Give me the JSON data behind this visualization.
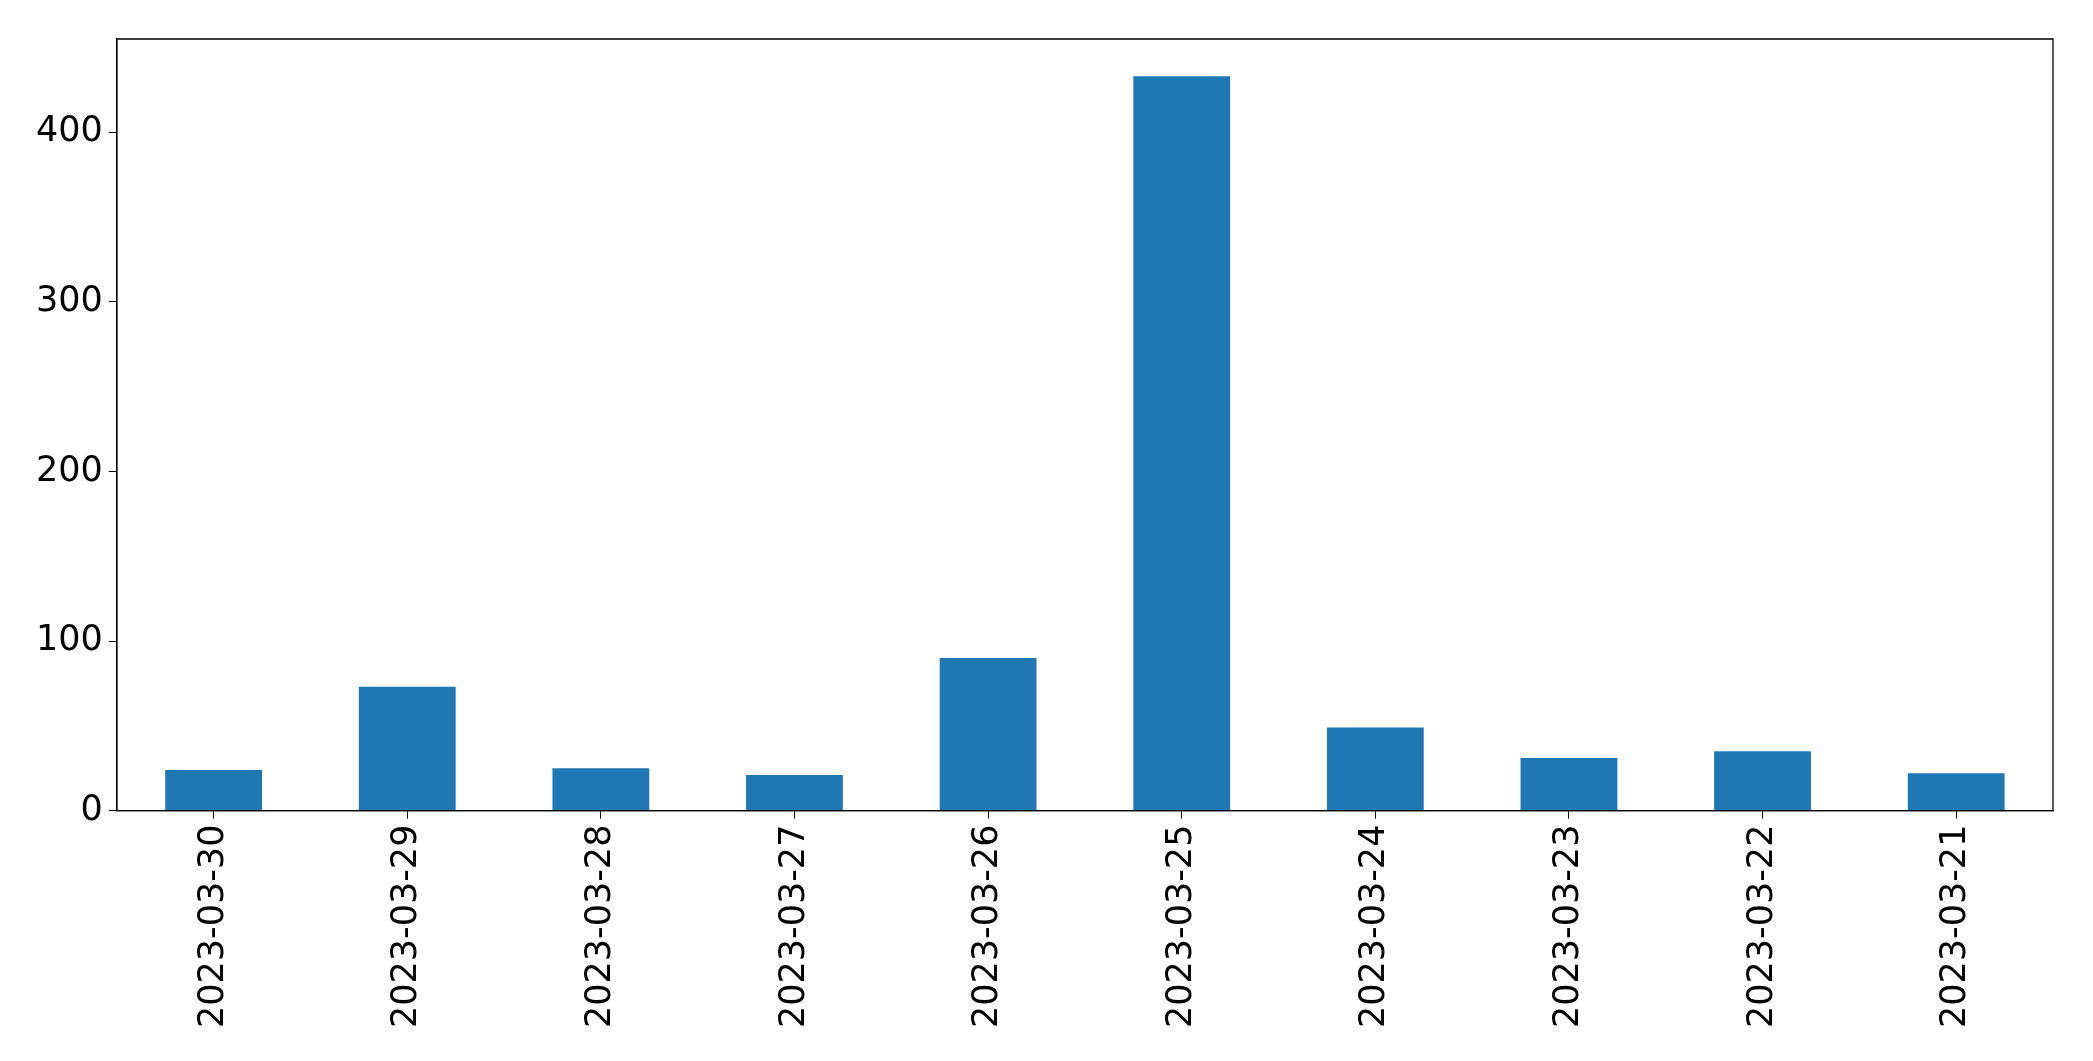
{
  "chart_data": {
    "type": "bar",
    "categories": [
      "2023-03-30",
      "2023-03-29",
      "2023-03-28",
      "2023-03-27",
      "2023-03-26",
      "2023-03-25",
      "2023-03-24",
      "2023-03-23",
      "2023-03-22",
      "2023-03-21"
    ],
    "values": [
      24,
      73,
      25,
      21,
      90,
      433,
      49,
      31,
      35,
      22
    ],
    "color": "#1f77b4",
    "ylim": [
      0,
      455
    ],
    "yticks": [
      0,
      100,
      200,
      300,
      400
    ],
    "grid": false,
    "legend": false
  }
}
